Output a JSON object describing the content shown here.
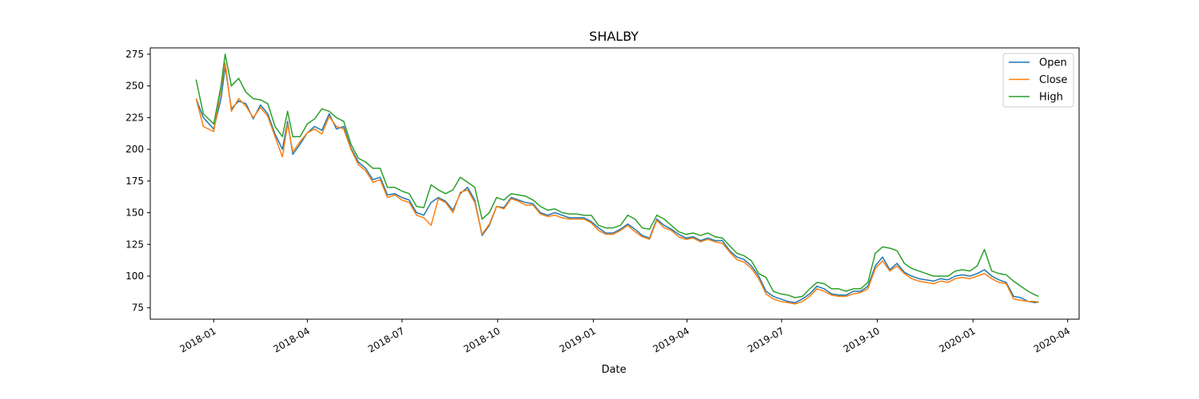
{
  "chart_data": {
    "type": "line",
    "title": "SHALBY",
    "xlabel": "Date",
    "ylabel": "",
    "grid": false,
    "legend_position": "top-right",
    "xlim": [
      "2017-11-01",
      "2020-04-12"
    ],
    "ylim": [
      66,
      280
    ],
    "x_ticks": [
      "2018-01",
      "2018-04",
      "2018-07",
      "2018-10",
      "2019-01",
      "2019-04",
      "2019-07",
      "2019-10",
      "2020-01",
      "2020-04"
    ],
    "y_ticks": [
      75,
      100,
      125,
      150,
      175,
      200,
      225,
      250,
      275
    ],
    "x": [
      "2017-12-15",
      "2017-12-22",
      "2018-01-01",
      "2018-01-08",
      "2018-01-12",
      "2018-01-18",
      "2018-01-25",
      "2018-02-01",
      "2018-02-08",
      "2018-02-15",
      "2018-02-22",
      "2018-03-01",
      "2018-03-08",
      "2018-03-13",
      "2018-03-18",
      "2018-03-25",
      "2018-04-01",
      "2018-04-08",
      "2018-04-15",
      "2018-04-22",
      "2018-04-29",
      "2018-05-06",
      "2018-05-13",
      "2018-05-20",
      "2018-05-27",
      "2018-06-03",
      "2018-06-10",
      "2018-06-17",
      "2018-06-24",
      "2018-07-01",
      "2018-07-08",
      "2018-07-15",
      "2018-07-22",
      "2018-07-29",
      "2018-08-05",
      "2018-08-12",
      "2018-08-19",
      "2018-08-26",
      "2018-09-02",
      "2018-09-09",
      "2018-09-16",
      "2018-09-23",
      "2018-09-30",
      "2018-10-07",
      "2018-10-14",
      "2018-10-21",
      "2018-10-28",
      "2018-11-04",
      "2018-11-11",
      "2018-11-18",
      "2018-11-25",
      "2018-12-02",
      "2018-12-09",
      "2018-12-16",
      "2018-12-23",
      "2018-12-30",
      "2019-01-06",
      "2019-01-13",
      "2019-01-20",
      "2019-01-27",
      "2019-02-03",
      "2019-02-10",
      "2019-02-17",
      "2019-02-24",
      "2019-03-03",
      "2019-03-10",
      "2019-03-17",
      "2019-03-24",
      "2019-03-31",
      "2019-04-07",
      "2019-04-14",
      "2019-04-21",
      "2019-04-28",
      "2019-05-05",
      "2019-05-12",
      "2019-05-19",
      "2019-05-26",
      "2019-06-02",
      "2019-06-09",
      "2019-06-16",
      "2019-06-23",
      "2019-06-30",
      "2019-07-07",
      "2019-07-14",
      "2019-07-21",
      "2019-07-28",
      "2019-08-04",
      "2019-08-11",
      "2019-08-18",
      "2019-08-25",
      "2019-09-01",
      "2019-09-08",
      "2019-09-15",
      "2019-09-22",
      "2019-09-29",
      "2019-10-06",
      "2019-10-13",
      "2019-10-20",
      "2019-10-27",
      "2019-11-03",
      "2019-11-10",
      "2019-11-17",
      "2019-11-24",
      "2019-12-01",
      "2019-12-08",
      "2019-12-15",
      "2019-12-22",
      "2019-12-29",
      "2020-01-05",
      "2020-01-12",
      "2020-01-19",
      "2020-01-26",
      "2020-02-02",
      "2020-02-09",
      "2020-02-16",
      "2020-02-23",
      "2020-03-01",
      "2020-03-04"
    ],
    "series": [
      {
        "name": "Open",
        "color": "#1f77b4",
        "values": [
          240,
          225,
          216,
          240,
          265,
          232,
          238,
          236,
          224,
          235,
          228,
          212,
          200,
          222,
          196,
          204,
          213,
          218,
          215,
          228,
          216,
          218,
          201,
          190,
          185,
          176,
          178,
          164,
          165,
          162,
          160,
          150,
          148,
          158,
          162,
          159,
          152,
          165,
          170,
          160,
          132,
          140,
          155,
          154,
          162,
          160,
          158,
          157,
          150,
          148,
          150,
          148,
          146,
          146,
          146,
          143,
          138,
          134,
          134,
          137,
          141,
          137,
          132,
          130,
          145,
          140,
          137,
          133,
          130,
          131,
          128,
          130,
          128,
          128,
          120,
          115,
          113,
          108,
          100,
          88,
          84,
          82,
          80,
          79,
          82,
          86,
          92,
          90,
          86,
          85,
          85,
          88,
          88,
          92,
          108,
          115,
          105,
          110,
          103,
          100,
          98,
          97,
          96,
          98,
          97,
          100,
          101,
          100,
          102,
          105,
          100,
          97,
          95,
          84,
          83,
          80,
          79,
          80
        ]
      },
      {
        "name": "Close",
        "color": "#ff7f0e",
        "values": [
          240,
          218,
          214,
          248,
          268,
          230,
          240,
          234,
          225,
          233,
          226,
          210,
          194,
          220,
          198,
          206,
          213,
          216,
          212,
          226,
          218,
          216,
          200,
          188,
          183,
          174,
          176,
          162,
          164,
          160,
          158,
          148,
          146,
          140,
          161,
          158,
          150,
          166,
          168,
          158,
          133,
          141,
          155,
          153,
          161,
          159,
          156,
          156,
          149,
          147,
          148,
          146,
          145,
          145,
          145,
          142,
          136,
          133,
          133,
          136,
          140,
          135,
          131,
          129,
          144,
          138,
          136,
          131,
          129,
          130,
          127,
          129,
          127,
          126,
          119,
          113,
          111,
          106,
          98,
          86,
          82,
          80,
          79,
          78,
          80,
          84,
          90,
          88,
          85,
          84,
          84,
          86,
          87,
          90,
          106,
          112,
          104,
          108,
          102,
          98,
          96,
          95,
          94,
          96,
          95,
          98,
          99,
          98,
          100,
          102,
          98,
          95,
          94,
          82,
          81,
          80,
          80,
          79
        ]
      },
      {
        "name": "High",
        "color": "#2ca02c",
        "values": [
          255,
          228,
          220,
          250,
          275,
          250,
          256,
          245,
          240,
          239,
          236,
          218,
          210,
          230,
          210,
          210,
          220,
          224,
          232,
          230,
          225,
          222,
          204,
          193,
          190,
          185,
          185,
          170,
          170,
          167,
          165,
          155,
          154,
          172,
          168,
          165,
          168,
          178,
          174,
          170,
          145,
          150,
          162,
          160,
          165,
          164,
          163,
          160,
          155,
          152,
          153,
          150,
          149,
          149,
          148,
          148,
          140,
          138,
          138,
          140,
          148,
          145,
          138,
          137,
          148,
          145,
          140,
          135,
          133,
          134,
          132,
          134,
          131,
          130,
          124,
          118,
          116,
          112,
          102,
          99,
          88,
          86,
          85,
          83,
          84,
          90,
          95,
          94,
          90,
          90,
          88,
          90,
          90,
          95,
          118,
          123,
          122,
          120,
          110,
          106,
          104,
          102,
          100,
          100,
          100,
          104,
          105,
          104,
          108,
          121,
          104,
          102,
          101,
          96,
          92,
          88,
          85,
          84
        ]
      }
    ]
  }
}
